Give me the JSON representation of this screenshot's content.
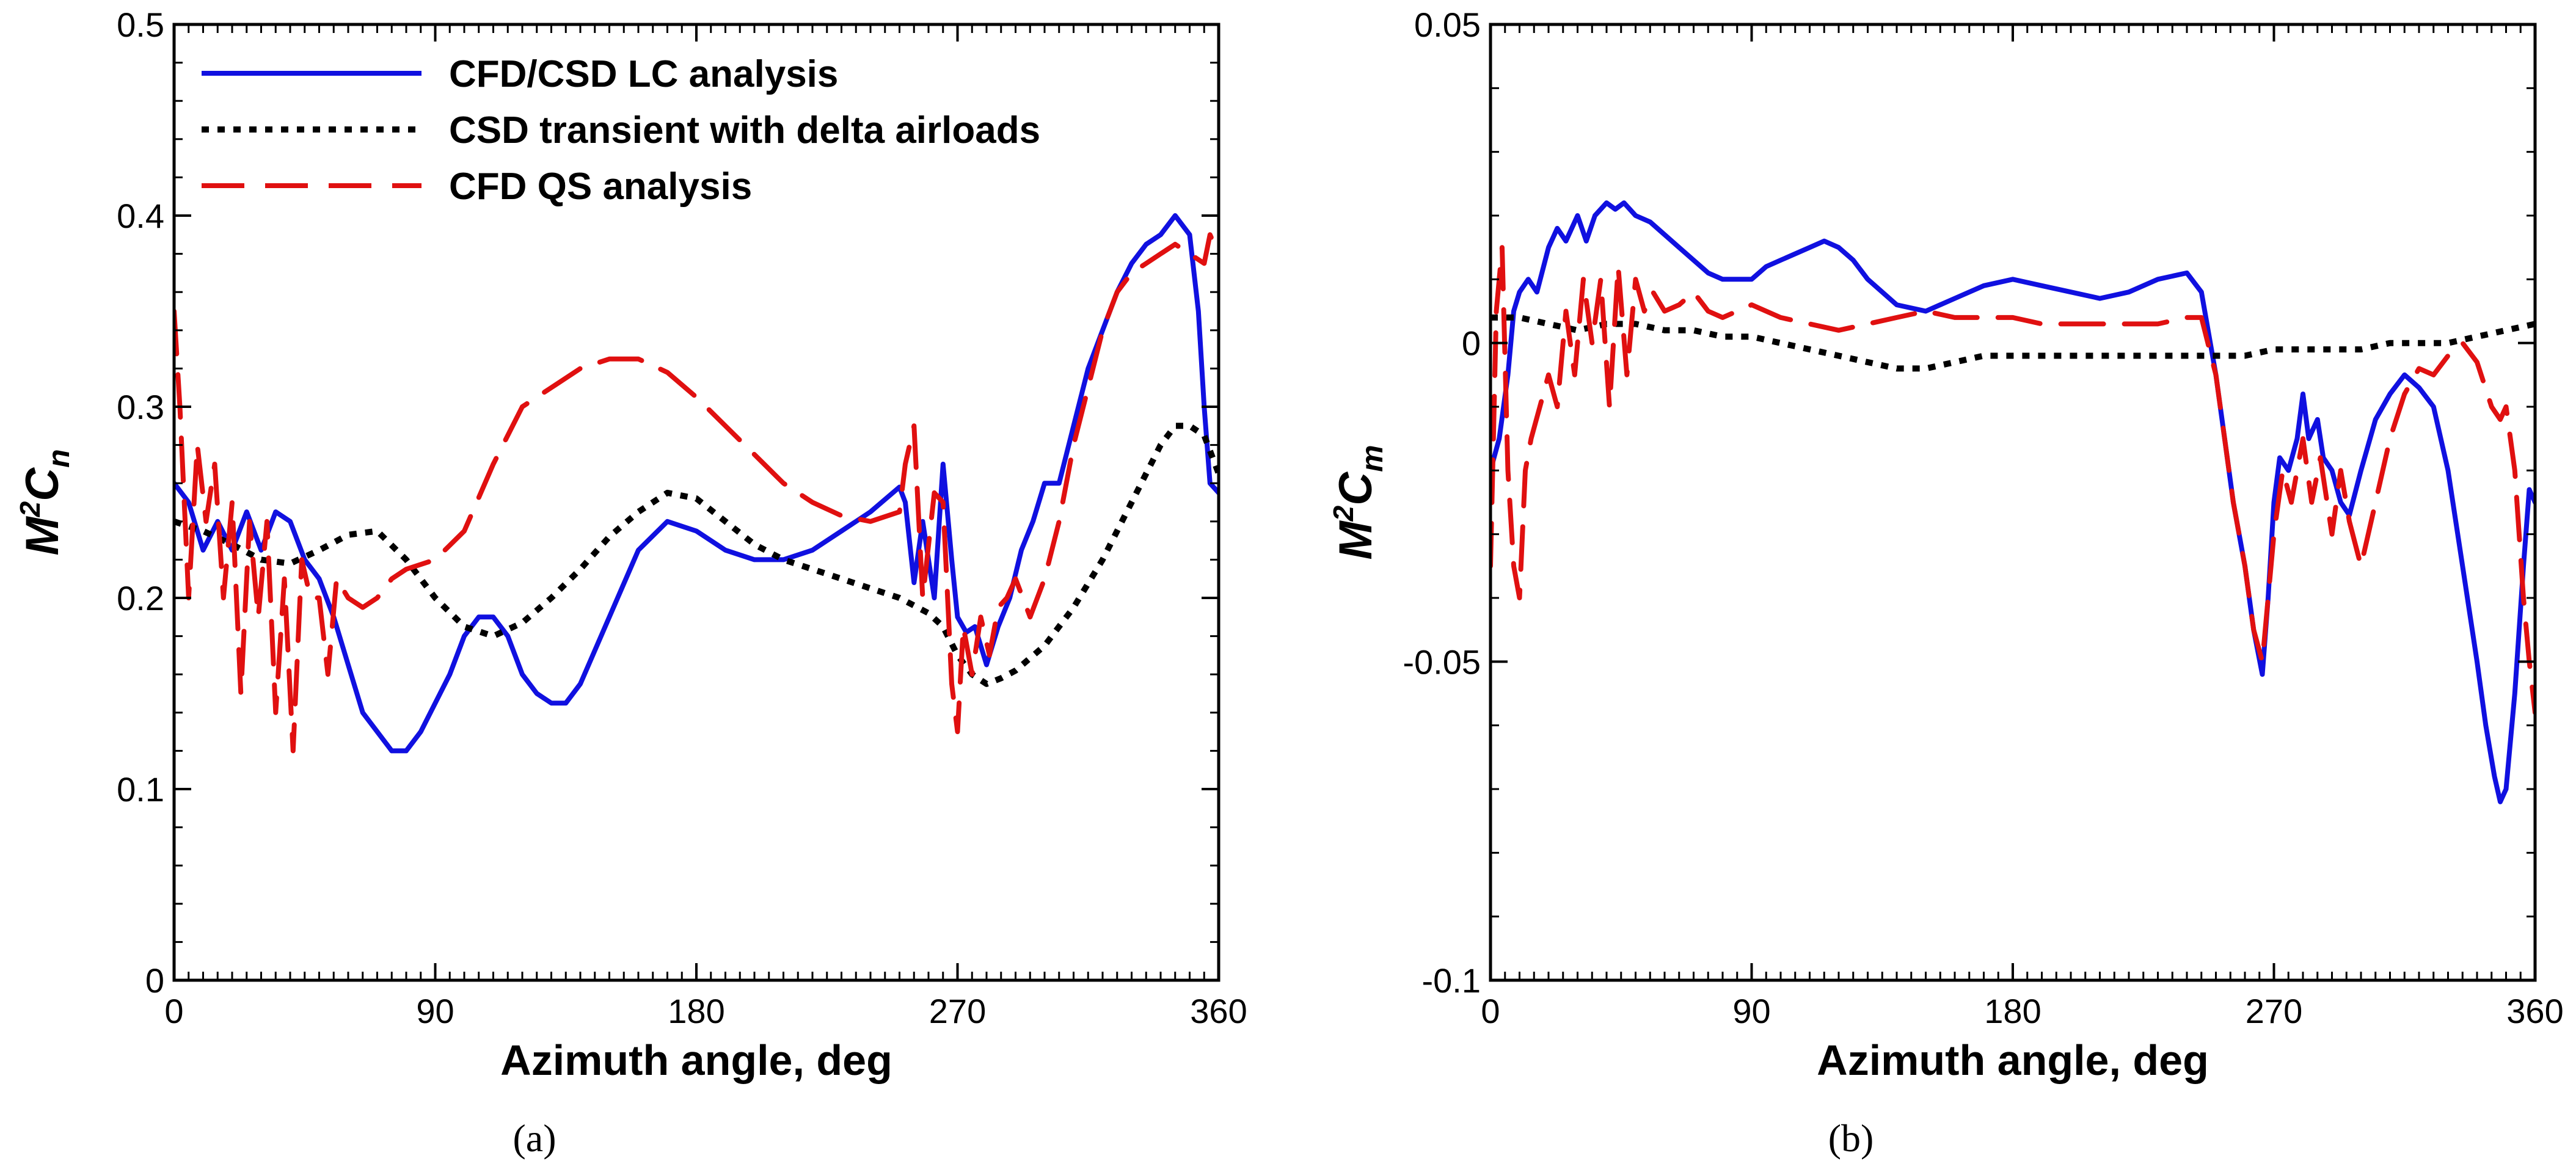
{
  "chart_data": [
    {
      "type": "line",
      "panel_label": "(a)",
      "title": "",
      "xlabel": "Azimuth angle, deg",
      "ylabel": {
        "base": "M",
        "sup": "2",
        "main": "C",
        "sub": "n"
      },
      "xlim": [
        0,
        360
      ],
      "ylim": [
        0,
        0.5
      ],
      "xticks": [
        0,
        90,
        180,
        270,
        360
      ],
      "xtick_labels": [
        "0",
        "90",
        "180",
        "270",
        "360"
      ],
      "yticks": [
        0,
        0.1,
        0.2,
        0.3,
        0.4,
        0.5
      ],
      "ytick_labels": [
        "0",
        "0.1",
        "0.2",
        "0.3",
        "0.4",
        "0.5"
      ],
      "grid": false,
      "legend": {
        "position": "top-left"
      },
      "series": [
        {
          "name": "CFD/CSD LC analysis",
          "color": "#1010e0",
          "style": "solid",
          "x": [
            0,
            5,
            10,
            15,
            20,
            25,
            30,
            35,
            40,
            45,
            50,
            55,
            60,
            65,
            70,
            75,
            80,
            85,
            90,
            95,
            100,
            105,
            110,
            115,
            120,
            125,
            130,
            135,
            140,
            150,
            160,
            170,
            180,
            190,
            200,
            210,
            220,
            230,
            240,
            250,
            252,
            255,
            258,
            262,
            265,
            268,
            270,
            273,
            276,
            280,
            284,
            288,
            292,
            296,
            300,
            305,
            310,
            315,
            320,
            325,
            330,
            335,
            340,
            345,
            350,
            353,
            355,
            357,
            360
          ],
          "values": [
            0.26,
            0.25,
            0.225,
            0.24,
            0.225,
            0.245,
            0.225,
            0.245,
            0.24,
            0.22,
            0.21,
            0.19,
            0.165,
            0.14,
            0.13,
            0.12,
            0.12,
            0.13,
            0.145,
            0.16,
            0.18,
            0.19,
            0.19,
            0.18,
            0.16,
            0.15,
            0.145,
            0.145,
            0.155,
            0.19,
            0.225,
            0.24,
            0.235,
            0.225,
            0.22,
            0.22,
            0.225,
            0.235,
            0.245,
            0.258,
            0.25,
            0.208,
            0.24,
            0.2,
            0.27,
            0.22,
            0.19,
            0.182,
            0.185,
            0.165,
            0.185,
            0.2,
            0.225,
            0.24,
            0.26,
            0.26,
            0.29,
            0.32,
            0.34,
            0.36,
            0.375,
            0.385,
            0.39,
            0.4,
            0.39,
            0.35,
            0.3,
            0.26,
            0.255
          ]
        },
        {
          "name": "CSD transient with delta airloads",
          "color": "#000000",
          "style": "dotted",
          "x": [
            0,
            10,
            20,
            30,
            40,
            50,
            60,
            70,
            80,
            90,
            100,
            110,
            120,
            130,
            140,
            150,
            160,
            170,
            180,
            190,
            200,
            210,
            220,
            230,
            240,
            250,
            255,
            260,
            265,
            270,
            275,
            280,
            285,
            290,
            300,
            310,
            320,
            330,
            340,
            345,
            350,
            355,
            360
          ],
          "values": [
            0.24,
            0.235,
            0.228,
            0.22,
            0.218,
            0.225,
            0.233,
            0.235,
            0.22,
            0.2,
            0.185,
            0.18,
            0.187,
            0.2,
            0.215,
            0.232,
            0.245,
            0.255,
            0.252,
            0.24,
            0.228,
            0.22,
            0.215,
            0.21,
            0.205,
            0.2,
            0.196,
            0.192,
            0.185,
            0.17,
            0.16,
            0.155,
            0.158,
            0.162,
            0.175,
            0.195,
            0.22,
            0.25,
            0.28,
            0.29,
            0.29,
            0.285,
            0.265
          ]
        },
        {
          "name": "CFD QS analysis",
          "color": "#e01010",
          "style": "dashed",
          "x": [
            0,
            2,
            5,
            8,
            11,
            14,
            17,
            20,
            23,
            26,
            29,
            32,
            35,
            38,
            41,
            44,
            47,
            50,
            53,
            56,
            60,
            65,
            70,
            75,
            80,
            90,
            100,
            110,
            120,
            130,
            140,
            150,
            160,
            170,
            180,
            190,
            200,
            210,
            220,
            230,
            240,
            250,
            252,
            255,
            258,
            262,
            265,
            268,
            270,
            272,
            275,
            278,
            281,
            284,
            287,
            290,
            295,
            300,
            305,
            310,
            315,
            320,
            325,
            330,
            335,
            340,
            345,
            350,
            355,
            357,
            360
          ],
          "values": [
            0.35,
            0.3,
            0.2,
            0.28,
            0.24,
            0.27,
            0.2,
            0.25,
            0.15,
            0.24,
            0.19,
            0.24,
            0.14,
            0.21,
            0.12,
            0.22,
            0.2,
            0.2,
            0.16,
            0.21,
            0.2,
            0.195,
            0.2,
            0.21,
            0.215,
            0.22,
            0.235,
            0.27,
            0.3,
            0.31,
            0.32,
            0.325,
            0.325,
            0.318,
            0.305,
            0.29,
            0.275,
            0.26,
            0.25,
            0.243,
            0.24,
            0.245,
            0.27,
            0.29,
            0.2,
            0.255,
            0.25,
            0.155,
            0.13,
            0.185,
            0.16,
            0.19,
            0.17,
            0.195,
            0.2,
            0.21,
            0.19,
            0.21,
            0.24,
            0.28,
            0.31,
            0.34,
            0.36,
            0.37,
            0.375,
            0.38,
            0.385,
            0.38,
            0.375,
            0.39,
            0.38
          ]
        }
      ]
    },
    {
      "type": "line",
      "panel_label": "(b)",
      "title": "",
      "xlabel": "Azimuth angle, deg",
      "ylabel": {
        "base": "M",
        "sup": "2",
        "main": "C",
        "sub": "m"
      },
      "xlim": [
        0,
        360
      ],
      "ylim": [
        -0.1,
        0.05
      ],
      "xticks": [
        0,
        90,
        180,
        270,
        360
      ],
      "xtick_labels": [
        "0",
        "90",
        "180",
        "270",
        "360"
      ],
      "yticks": [
        -0.1,
        -0.05,
        0,
        0.05
      ],
      "ytick_labels": [
        "-0.1",
        "-0.05",
        "0",
        "0.05"
      ],
      "grid": false,
      "legend": {
        "position": "none"
      },
      "series": [
        {
          "name": "CFD/CSD LC analysis",
          "color": "#1010e0",
          "style": "solid",
          "x": [
            0,
            3,
            6,
            8,
            10,
            13,
            16,
            20,
            23,
            26,
            30,
            33,
            36,
            40,
            43,
            46,
            50,
            55,
            60,
            65,
            70,
            75,
            80,
            85,
            90,
            95,
            100,
            105,
            110,
            115,
            120,
            125,
            130,
            140,
            150,
            160,
            170,
            180,
            190,
            200,
            210,
            220,
            230,
            240,
            245,
            250,
            253,
            256,
            260,
            263,
            266,
            268,
            270,
            272,
            275,
            278,
            280,
            282,
            285,
            287,
            290,
            293,
            296,
            300,
            305,
            310,
            315,
            320,
            325,
            330,
            335,
            340,
            343,
            346,
            348,
            350,
            353,
            356,
            358,
            360
          ],
          "values": [
            -0.02,
            -0.015,
            -0.005,
            0.005,
            0.008,
            0.01,
            0.008,
            0.015,
            0.018,
            0.016,
            0.02,
            0.016,
            0.02,
            0.022,
            0.021,
            0.022,
            0.02,
            0.019,
            0.017,
            0.015,
            0.013,
            0.011,
            0.01,
            0.01,
            0.01,
            0.012,
            0.013,
            0.014,
            0.015,
            0.016,
            0.015,
            0.013,
            0.01,
            0.006,
            0.005,
            0.007,
            0.009,
            0.01,
            0.009,
            0.008,
            0.007,
            0.008,
            0.01,
            0.011,
            0.008,
            -0.005,
            -0.015,
            -0.025,
            -0.035,
            -0.045,
            -0.052,
            -0.04,
            -0.025,
            -0.018,
            -0.02,
            -0.015,
            -0.008,
            -0.015,
            -0.012,
            -0.018,
            -0.02,
            -0.025,
            -0.027,
            -0.02,
            -0.012,
            -0.008,
            -0.005,
            -0.007,
            -0.01,
            -0.02,
            -0.035,
            -0.05,
            -0.06,
            -0.068,
            -0.072,
            -0.07,
            -0.055,
            -0.035,
            -0.023,
            -0.025
          ]
        },
        {
          "name": "CSD transient with delta airloads",
          "color": "#000000",
          "style": "dotted",
          "x": [
            0,
            10,
            20,
            30,
            40,
            50,
            60,
            70,
            80,
            90,
            100,
            110,
            120,
            130,
            140,
            150,
            160,
            170,
            180,
            190,
            200,
            210,
            220,
            230,
            240,
            250,
            260,
            270,
            280,
            290,
            300,
            310,
            320,
            330,
            340,
            350,
            360
          ],
          "values": [
            0.004,
            0.004,
            0.003,
            0.002,
            0.003,
            0.003,
            0.002,
            0.002,
            0.001,
            0.001,
            0.0,
            -0.001,
            -0.002,
            -0.003,
            -0.004,
            -0.004,
            -0.003,
            -0.002,
            -0.002,
            -0.002,
            -0.002,
            -0.002,
            -0.002,
            -0.002,
            -0.002,
            -0.002,
            -0.002,
            -0.001,
            -0.001,
            -0.001,
            -0.001,
            0.0,
            0.0,
            0.0,
            0.001,
            0.002,
            0.003
          ]
        },
        {
          "name": "CFD QS analysis",
          "color": "#e01010",
          "style": "dashed",
          "x": [
            0,
            2,
            4,
            6,
            8,
            10,
            12,
            14,
            17,
            20,
            23,
            26,
            29,
            32,
            35,
            38,
            41,
            44,
            47,
            50,
            53,
            56,
            60,
            65,
            70,
            75,
            80,
            90,
            100,
            110,
            120,
            130,
            140,
            150,
            160,
            170,
            180,
            190,
            200,
            210,
            220,
            230,
            240,
            245,
            250,
            253,
            256,
            260,
            263,
            266,
            268,
            270,
            273,
            276,
            280,
            283,
            286,
            290,
            293,
            296,
            300,
            305,
            310,
            315,
            320,
            325,
            330,
            335,
            340,
            345,
            348,
            350,
            353,
            356,
            358,
            360
          ],
          "values": [
            -0.035,
            0.005,
            0.015,
            -0.02,
            -0.035,
            -0.04,
            -0.02,
            -0.015,
            -0.01,
            -0.005,
            -0.01,
            0.005,
            -0.005,
            0.01,
            0.0,
            0.01,
            -0.01,
            0.012,
            -0.005,
            0.01,
            0.005,
            0.008,
            0.005,
            0.006,
            0.008,
            0.005,
            0.004,
            0.006,
            0.004,
            0.003,
            0.002,
            0.003,
            0.004,
            0.005,
            0.004,
            0.004,
            0.004,
            0.003,
            0.003,
            0.003,
            0.003,
            0.003,
            0.004,
            0.004,
            -0.005,
            -0.015,
            -0.025,
            -0.035,
            -0.045,
            -0.05,
            -0.04,
            -0.03,
            -0.02,
            -0.025,
            -0.015,
            -0.025,
            -0.018,
            -0.03,
            -0.02,
            -0.028,
            -0.035,
            -0.025,
            -0.015,
            -0.008,
            -0.004,
            -0.005,
            -0.002,
            0.0,
            -0.003,
            -0.01,
            -0.012,
            -0.01,
            -0.02,
            -0.04,
            -0.05,
            -0.058
          ]
        }
      ]
    }
  ]
}
